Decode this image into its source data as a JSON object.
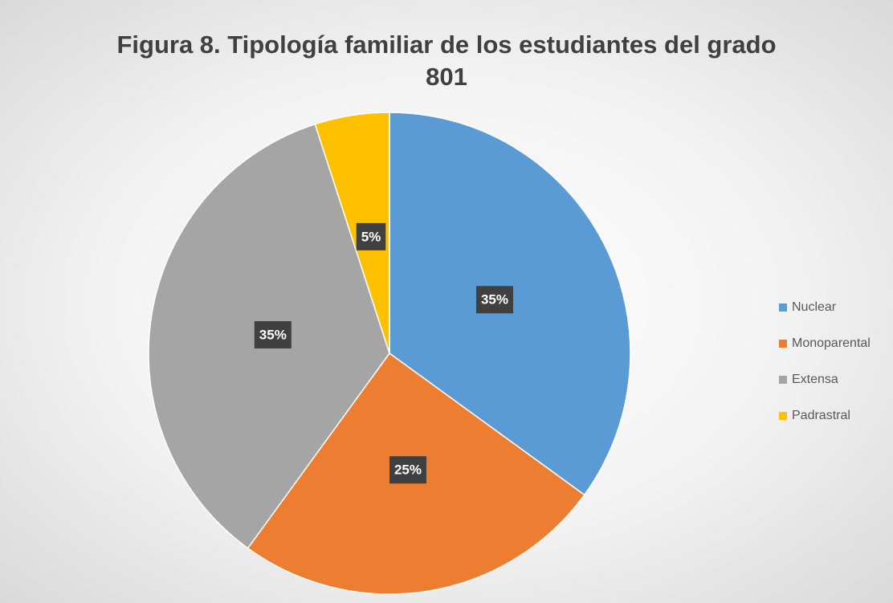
{
  "chart_data": {
    "type": "pie",
    "title": "Figura 8. Tipología familiar de los estudiantes del grado 801",
    "categories": [
      "Nuclear",
      "Monoparental",
      "Extensa",
      "Padrastral"
    ],
    "values": [
      35,
      25,
      35,
      5
    ],
    "value_labels": [
      "35%",
      "25%",
      "35%",
      "5%"
    ],
    "colors": [
      "#5b9bd5",
      "#ed7d31",
      "#a5a5a5",
      "#ffc000"
    ],
    "legend": "right"
  }
}
